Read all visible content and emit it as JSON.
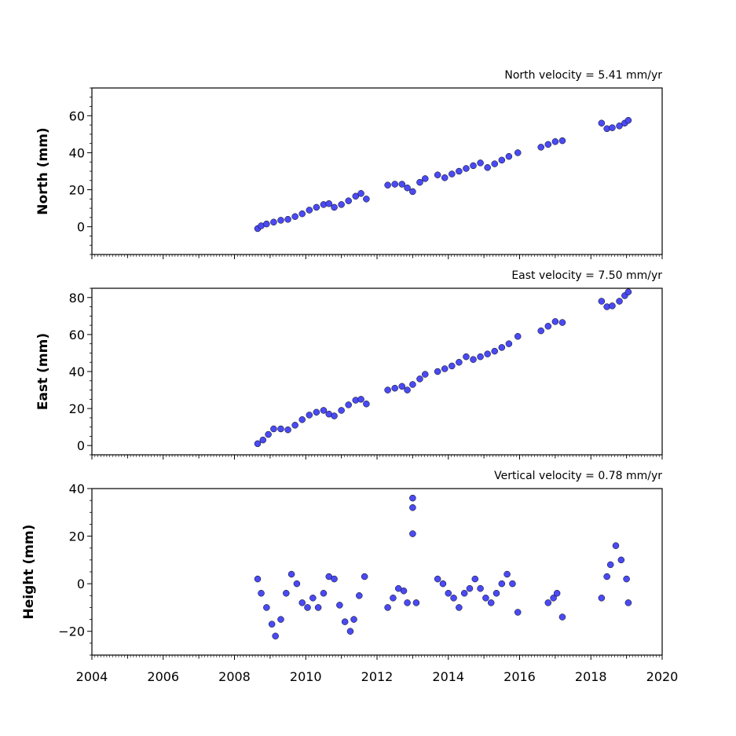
{
  "chart_data": [
    {
      "type": "scatter",
      "title": "North velocity = 5.41 mm/yr",
      "ylabel": "North (mm)",
      "xlim": [
        2004,
        2020
      ],
      "ylim": [
        -15,
        75
      ],
      "yticks": [
        0,
        20,
        40,
        60
      ],
      "marker_color": "#4a4af4",
      "marker_edge": "#000000",
      "series": [
        {
          "values": [
            [
              2008.65,
              -1
            ],
            [
              2008.75,
              0.5
            ],
            [
              2008.9,
              1.5
            ],
            [
              2009.1,
              2.5
            ],
            [
              2009.3,
              3.5
            ],
            [
              2009.5,
              4
            ],
            [
              2009.7,
              5.5
            ],
            [
              2009.9,
              7
            ],
            [
              2010.1,
              9
            ],
            [
              2010.3,
              10.5
            ],
            [
              2010.5,
              12
            ],
            [
              2010.65,
              12.5
            ],
            [
              2010.8,
              10.5
            ],
            [
              2011.0,
              12
            ],
            [
              2011.2,
              14
            ],
            [
              2011.4,
              16.5
            ],
            [
              2011.55,
              18
            ],
            [
              2011.7,
              15
            ],
            [
              2012.3,
              22.5
            ],
            [
              2012.5,
              23
            ],
            [
              2012.7,
              23
            ],
            [
              2012.85,
              21
            ],
            [
              2013.0,
              19
            ],
            [
              2013.2,
              24
            ],
            [
              2013.35,
              26
            ],
            [
              2013.7,
              28
            ],
            [
              2013.9,
              26.5
            ],
            [
              2014.1,
              28.5
            ],
            [
              2014.3,
              30
            ],
            [
              2014.5,
              31.5
            ],
            [
              2014.7,
              33
            ],
            [
              2014.9,
              34.5
            ],
            [
              2015.1,
              32
            ],
            [
              2015.3,
              34
            ],
            [
              2015.5,
              36
            ],
            [
              2015.7,
              38
            ],
            [
              2015.95,
              40
            ],
            [
              2016.6,
              43
            ],
            [
              2016.8,
              44.5
            ],
            [
              2017.0,
              46
            ],
            [
              2017.2,
              46.5
            ],
            [
              2018.3,
              56
            ],
            [
              2018.45,
              53
            ],
            [
              2018.6,
              53.5
            ],
            [
              2018.8,
              54.5
            ],
            [
              2018.95,
              56
            ],
            [
              2019.05,
              57.5
            ]
          ]
        }
      ]
    },
    {
      "type": "scatter",
      "title": "East velocity = 7.50 mm/yr",
      "ylabel": "East (mm)",
      "xlim": [
        2004,
        2020
      ],
      "ylim": [
        -5,
        85
      ],
      "yticks": [
        0,
        20,
        40,
        60,
        80
      ],
      "marker_color": "#4a4af4",
      "marker_edge": "#000000",
      "series": [
        {
          "values": [
            [
              2008.65,
              1
            ],
            [
              2008.8,
              3
            ],
            [
              2008.95,
              6
            ],
            [
              2009.1,
              9
            ],
            [
              2009.3,
              9
            ],
            [
              2009.5,
              8.5
            ],
            [
              2009.7,
              11
            ],
            [
              2009.9,
              14
            ],
            [
              2010.1,
              16.5
            ],
            [
              2010.3,
              18
            ],
            [
              2010.5,
              19
            ],
            [
              2010.65,
              17
            ],
            [
              2010.8,
              16
            ],
            [
              2011.0,
              19
            ],
            [
              2011.2,
              22
            ],
            [
              2011.4,
              24.5
            ],
            [
              2011.55,
              25
            ],
            [
              2011.7,
              22.5
            ],
            [
              2012.3,
              30
            ],
            [
              2012.5,
              31
            ],
            [
              2012.7,
              32
            ],
            [
              2012.85,
              30
            ],
            [
              2013.0,
              33
            ],
            [
              2013.2,
              36
            ],
            [
              2013.35,
              38.5
            ],
            [
              2013.7,
              40
            ],
            [
              2013.9,
              41.5
            ],
            [
              2014.1,
              43
            ],
            [
              2014.3,
              45
            ],
            [
              2014.5,
              48
            ],
            [
              2014.7,
              46.5
            ],
            [
              2014.9,
              48
            ],
            [
              2015.1,
              49.5
            ],
            [
              2015.3,
              51
            ],
            [
              2015.5,
              53
            ],
            [
              2015.7,
              55
            ],
            [
              2015.95,
              59
            ],
            [
              2016.6,
              62
            ],
            [
              2016.8,
              64.5
            ],
            [
              2017.0,
              67
            ],
            [
              2017.2,
              66.5
            ],
            [
              2018.3,
              78
            ],
            [
              2018.45,
              75
            ],
            [
              2018.6,
              75.5
            ],
            [
              2018.8,
              78
            ],
            [
              2018.95,
              81
            ],
            [
              2019.05,
              83
            ]
          ]
        }
      ]
    },
    {
      "type": "scatter",
      "title": "Vertical velocity = 0.78 mm/yr",
      "ylabel": "Height (mm)",
      "xlabel": "",
      "xlim": [
        2004,
        2020
      ],
      "ylim": [
        -30,
        40
      ],
      "yticks": [
        -20,
        0,
        20,
        40
      ],
      "xticks": [
        2004,
        2006,
        2008,
        2010,
        2012,
        2014,
        2016,
        2018,
        2020
      ],
      "marker_color": "#4a4af4",
      "marker_edge": "#000000",
      "series": [
        {
          "values": [
            [
              2008.65,
              2
            ],
            [
              2008.75,
              -4
            ],
            [
              2008.9,
              -10
            ],
            [
              2009.05,
              -17
            ],
            [
              2009.15,
              -22
            ],
            [
              2009.3,
              -15
            ],
            [
              2009.45,
              -4
            ],
            [
              2009.6,
              4
            ],
            [
              2009.75,
              0
            ],
            [
              2009.9,
              -8
            ],
            [
              2010.05,
              -10
            ],
            [
              2010.2,
              -6
            ],
            [
              2010.35,
              -10
            ],
            [
              2010.5,
              -4
            ],
            [
              2010.65,
              3
            ],
            [
              2010.8,
              2
            ],
            [
              2010.95,
              -9
            ],
            [
              2011.1,
              -16
            ],
            [
              2011.25,
              -20
            ],
            [
              2011.35,
              -15
            ],
            [
              2011.5,
              -5
            ],
            [
              2011.65,
              3
            ],
            [
              2012.3,
              -10
            ],
            [
              2012.45,
              -6
            ],
            [
              2012.6,
              -2
            ],
            [
              2012.75,
              -3
            ],
            [
              2012.85,
              -8
            ],
            [
              2013.0,
              36
            ],
            [
              2013.0,
              32
            ],
            [
              2013.0,
              21
            ],
            [
              2013.1,
              -8
            ],
            [
              2013.7,
              2
            ],
            [
              2013.85,
              0
            ],
            [
              2014.0,
              -4
            ],
            [
              2014.15,
              -6
            ],
            [
              2014.3,
              -10
            ],
            [
              2014.45,
              -4
            ],
            [
              2014.6,
              -2
            ],
            [
              2014.75,
              2
            ],
            [
              2014.9,
              -2
            ],
            [
              2015.05,
              -6
            ],
            [
              2015.2,
              -8
            ],
            [
              2015.35,
              -4
            ],
            [
              2015.5,
              0
            ],
            [
              2015.65,
              4
            ],
            [
              2015.8,
              0
            ],
            [
              2015.95,
              -12
            ],
            [
              2016.8,
              -8
            ],
            [
              2016.95,
              -6
            ],
            [
              2017.05,
              -4
            ],
            [
              2017.2,
              -14
            ],
            [
              2018.3,
              -6
            ],
            [
              2018.45,
              3
            ],
            [
              2018.55,
              8
            ],
            [
              2018.7,
              16
            ],
            [
              2018.85,
              10
            ],
            [
              2019.0,
              2
            ],
            [
              2019.05,
              -8
            ]
          ]
        }
      ]
    }
  ]
}
